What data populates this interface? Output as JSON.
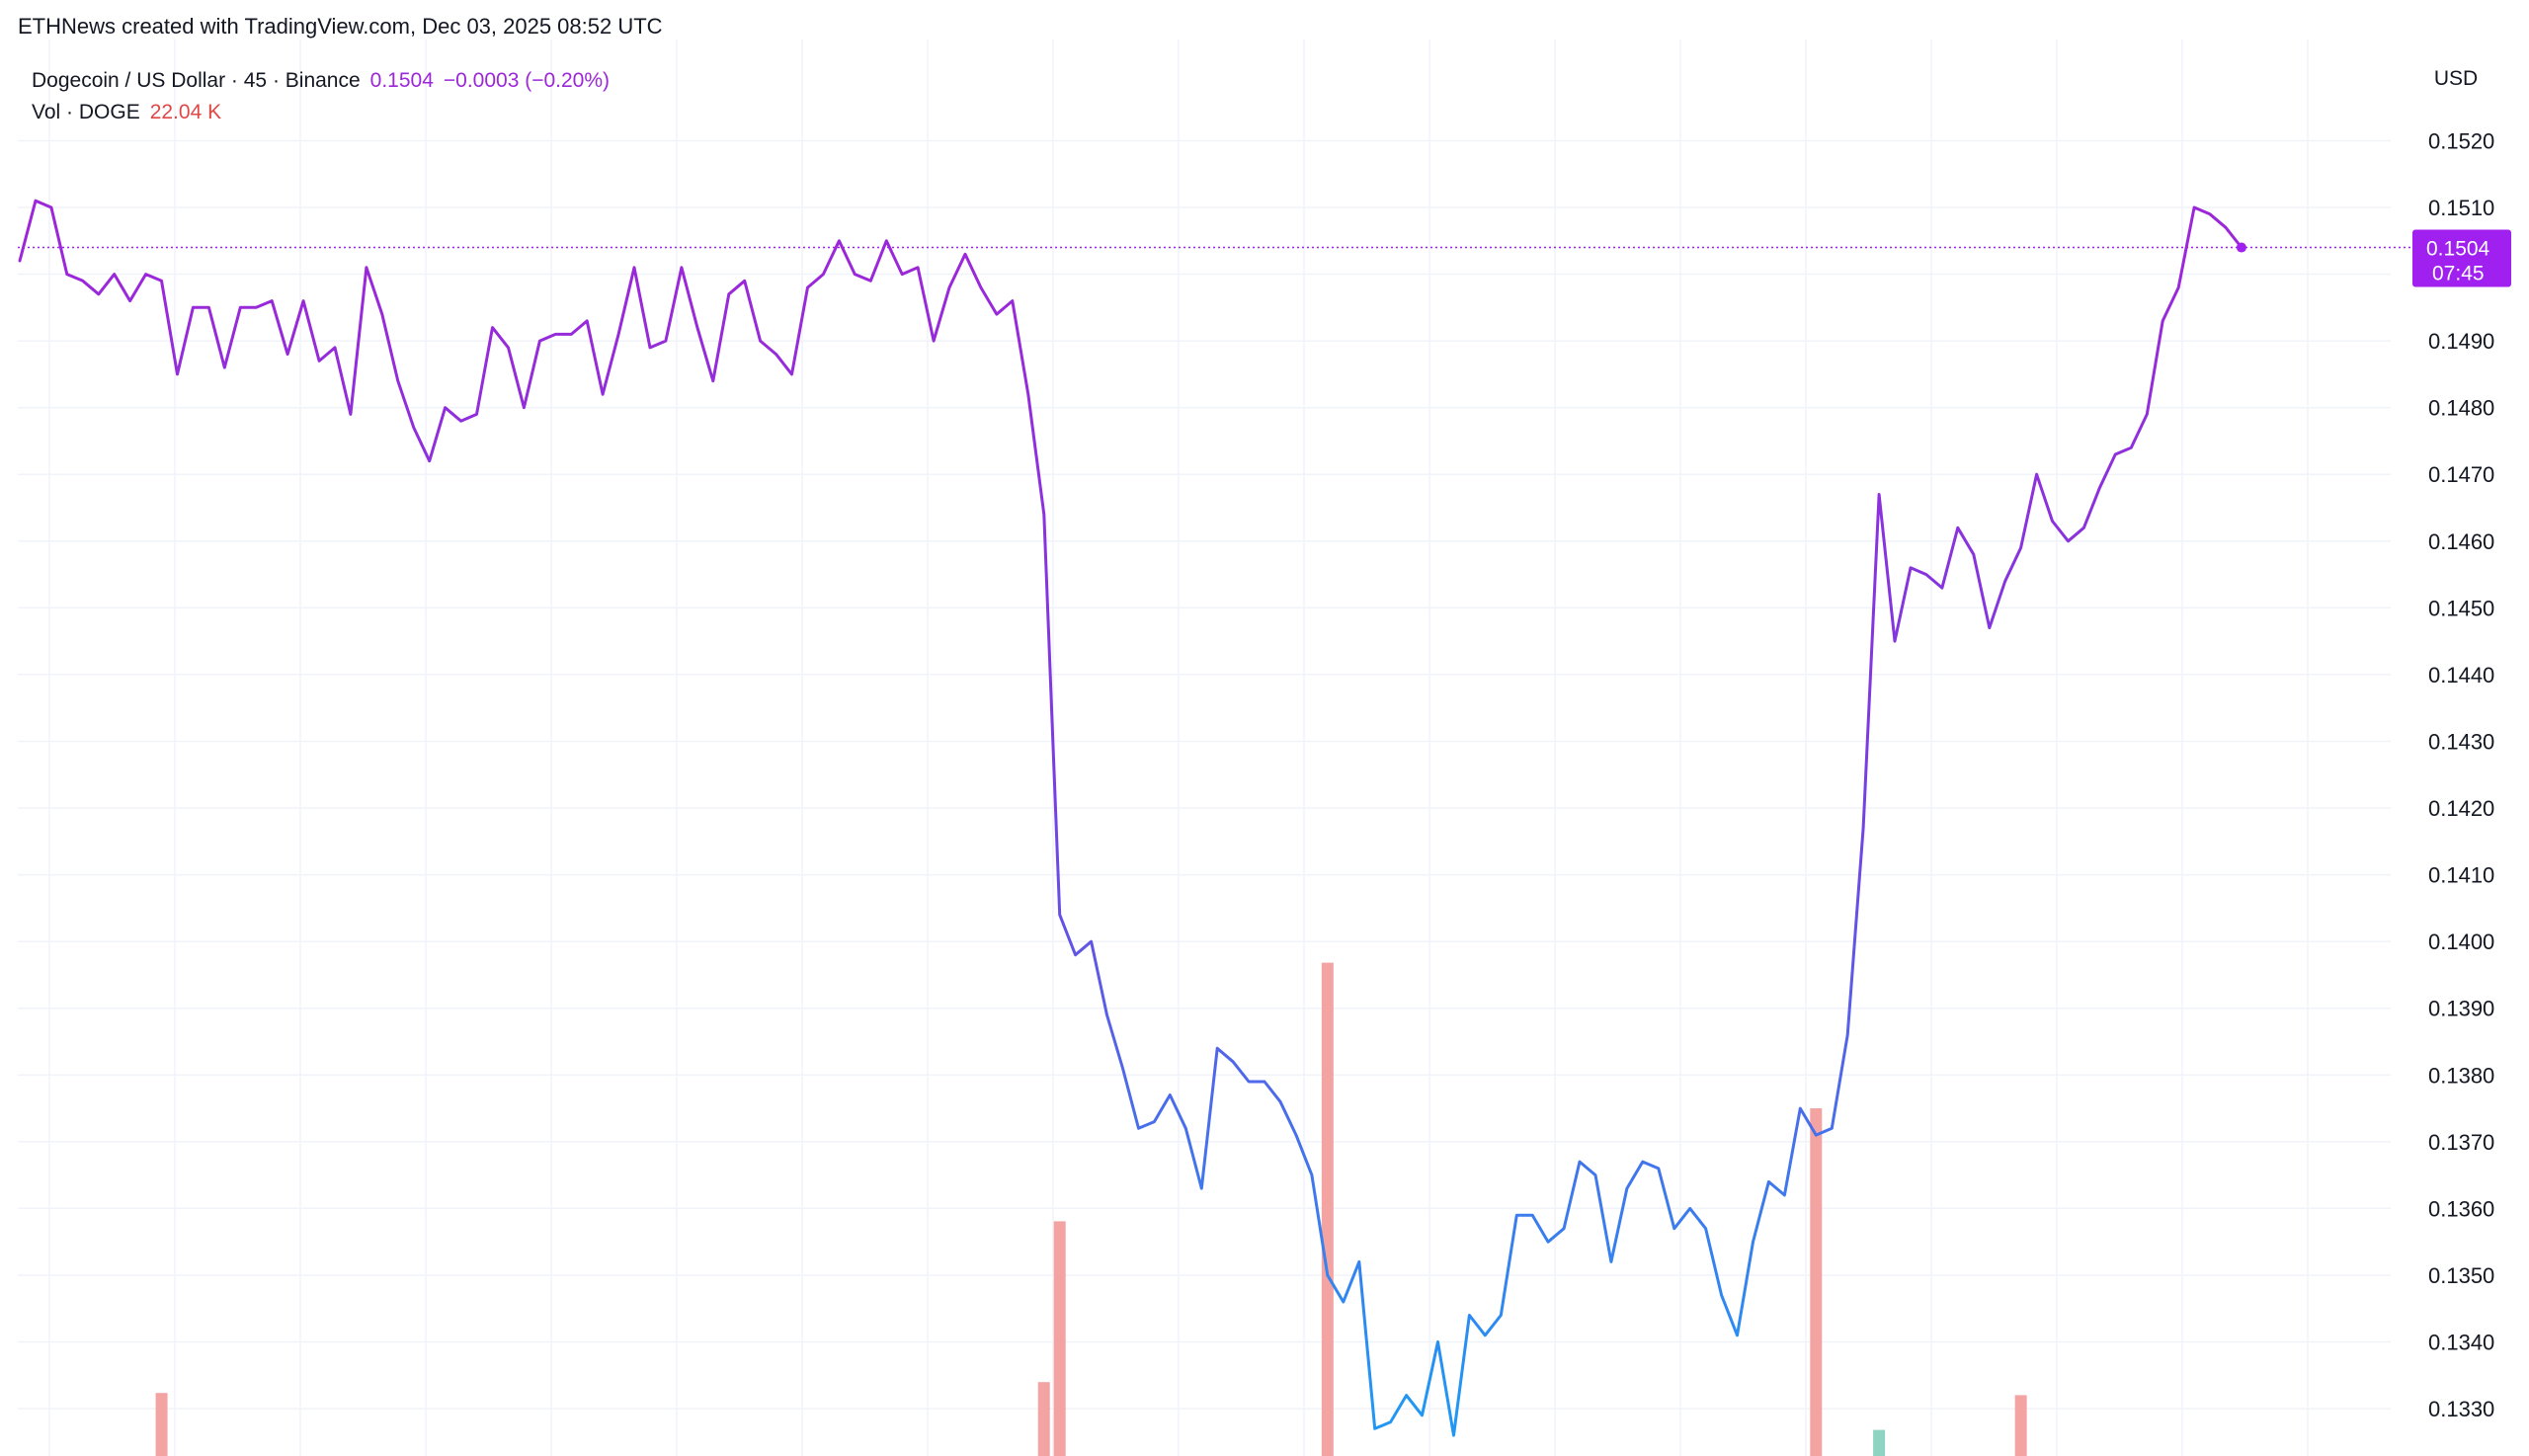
{
  "attribution": "ETHNews created with TradingView.com, Dec 03, 2025 08:52 UTC",
  "legend": {
    "symbol_line": "Dogecoin / US Dollar · 45 · Binance",
    "price": "0.1504",
    "change": "−0.0003 (−0.20%)",
    "volume_label": "Vol · DOGE",
    "volume_value": "22.04 K"
  },
  "currency": "USD",
  "last_price_tag": {
    "price": "0.1504",
    "countdown": "07:45"
  },
  "colors": {
    "line_top": "#9c27d9",
    "line_bottom": "#2196f3",
    "volume_down": "#f4a3a3",
    "volume_up": "#8fd3c3",
    "price_tag_bg": "#a020f0",
    "grid": "#f0f3fa"
  },
  "chart_data": {
    "type": "line",
    "title": "",
    "ylabel": "",
    "ylim": [
      0.1324,
      0.1524
    ],
    "y_ticks": [
      "0.1520",
      "0.1510",
      "0.1490",
      "0.1480",
      "0.1470",
      "0.1460",
      "0.1450",
      "0.1440",
      "0.1430",
      "0.1420",
      "0.1410",
      "0.1400",
      "0.1390",
      "0.1380",
      "0.1370",
      "0.1360",
      "0.1350",
      "0.1340",
      "0.1330"
    ],
    "grid": true,
    "series": [
      {
        "values": [
          0.1502,
          0.1511,
          0.151,
          0.15,
          0.1499,
          0.1497,
          0.15,
          0.1496,
          0.15,
          0.1499,
          0.1485,
          0.1495,
          0.1495,
          0.1486,
          0.1495,
          0.1495,
          0.1496,
          0.1488,
          0.1496,
          0.1487,
          0.1489,
          0.1479,
          0.1501,
          0.1494,
          0.1484,
          0.1477,
          0.1472,
          0.148,
          0.1478,
          0.1479,
          0.1492,
          0.1489,
          0.148,
          0.149,
          0.1491,
          0.1491,
          0.1493,
          0.1482,
          0.1491,
          0.1501,
          0.1489,
          0.149,
          0.1501,
          0.1492,
          0.1484,
          0.1497,
          0.1499,
          0.149,
          0.1488,
          0.1485,
          0.1498,
          0.15,
          0.1505,
          0.15,
          0.1499,
          0.1505,
          0.15,
          0.1501,
          0.149,
          0.1498,
          0.1503,
          0.1498,
          0.1494,
          0.1496,
          0.1482,
          0.1464,
          0.1404,
          0.1398,
          0.14,
          0.1389,
          0.1381,
          0.1372,
          0.1373,
          0.1377,
          0.1372,
          0.1363,
          0.1384,
          0.1382,
          0.1379,
          0.1379,
          0.1376,
          0.1371,
          0.1365,
          0.135,
          0.1346,
          0.1352,
          0.1327,
          0.1328,
          0.1332,
          0.1329,
          0.134,
          0.1326,
          0.1344,
          0.1341,
          0.1344,
          0.1359,
          0.1359,
          0.1355,
          0.1357,
          0.1367,
          0.1365,
          0.1352,
          0.1363,
          0.1367,
          0.1366,
          0.1357,
          0.136,
          0.1357,
          0.1347,
          0.1341,
          0.1355,
          0.1364,
          0.1362,
          0.1375,
          0.1371,
          0.1372,
          0.1386,
          0.1417,
          0.1467,
          0.1445,
          0.1456,
          0.1455,
          0.1453,
          0.1462,
          0.1458,
          0.1447,
          0.1454,
          0.1459,
          0.147,
          0.1463,
          0.146,
          0.1462,
          0.1468,
          0.1473,
          0.1474,
          0.1479,
          0.1493,
          0.1498,
          0.151,
          0.1509,
          0.1507,
          0.1504
        ]
      }
    ],
    "volume": [
      {
        "i": 9,
        "value": 0.29,
        "dir": "down"
      },
      {
        "i": 65,
        "value": 0.34,
        "dir": "down"
      },
      {
        "i": 66,
        "value": 1.08,
        "dir": "down"
      },
      {
        "i": 83,
        "value": 2.27,
        "dir": "down"
      },
      {
        "i": 114,
        "value": 1.6,
        "dir": "down"
      },
      {
        "i": 118,
        "value": 0.12,
        "dir": "up"
      },
      {
        "i": 127,
        "value": 0.28,
        "dir": "down"
      }
    ]
  }
}
